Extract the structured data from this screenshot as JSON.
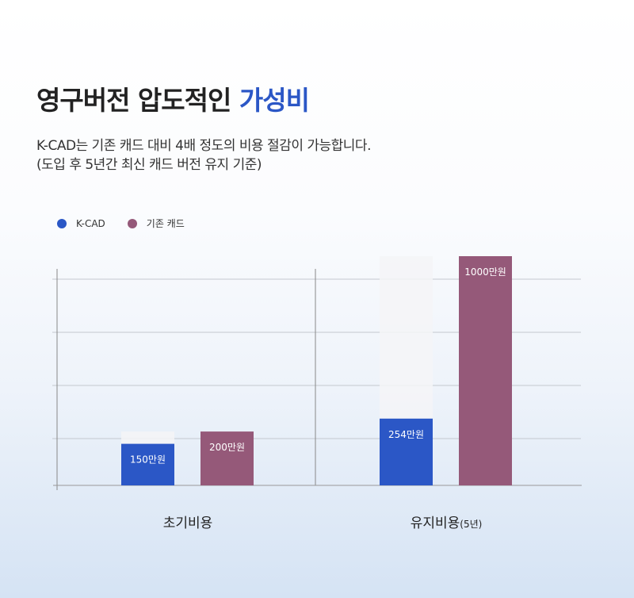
{
  "header": {
    "title_main": "영구버전 압도적인",
    "title_highlight": "가성비",
    "subtitle_line1": "K-CAD는 기존 캐드 대비 4배 정도의 비용 절감이 가능합니다.",
    "subtitle_line2": "(도입 후 5년간 최신 캐드 버전 유지 기준)"
  },
  "chart_data": {
    "type": "bar",
    "categories": [
      "초기비용",
      "유지비용"
    ],
    "category_suffix": [
      "",
      "(5년)"
    ],
    "series": [
      {
        "name": "K-CAD",
        "values": [
          150,
          254
        ],
        "labels": [
          "150만원",
          "254만원"
        ],
        "color": "#2b57c6"
      },
      {
        "name": "기존 캐드",
        "values": [
          200,
          1000
        ],
        "labels": [
          "200만원",
          "1000만원"
        ],
        "color": "#955979"
      }
    ],
    "unit": "만원",
    "legend": "top-left",
    "grid": true
  }
}
